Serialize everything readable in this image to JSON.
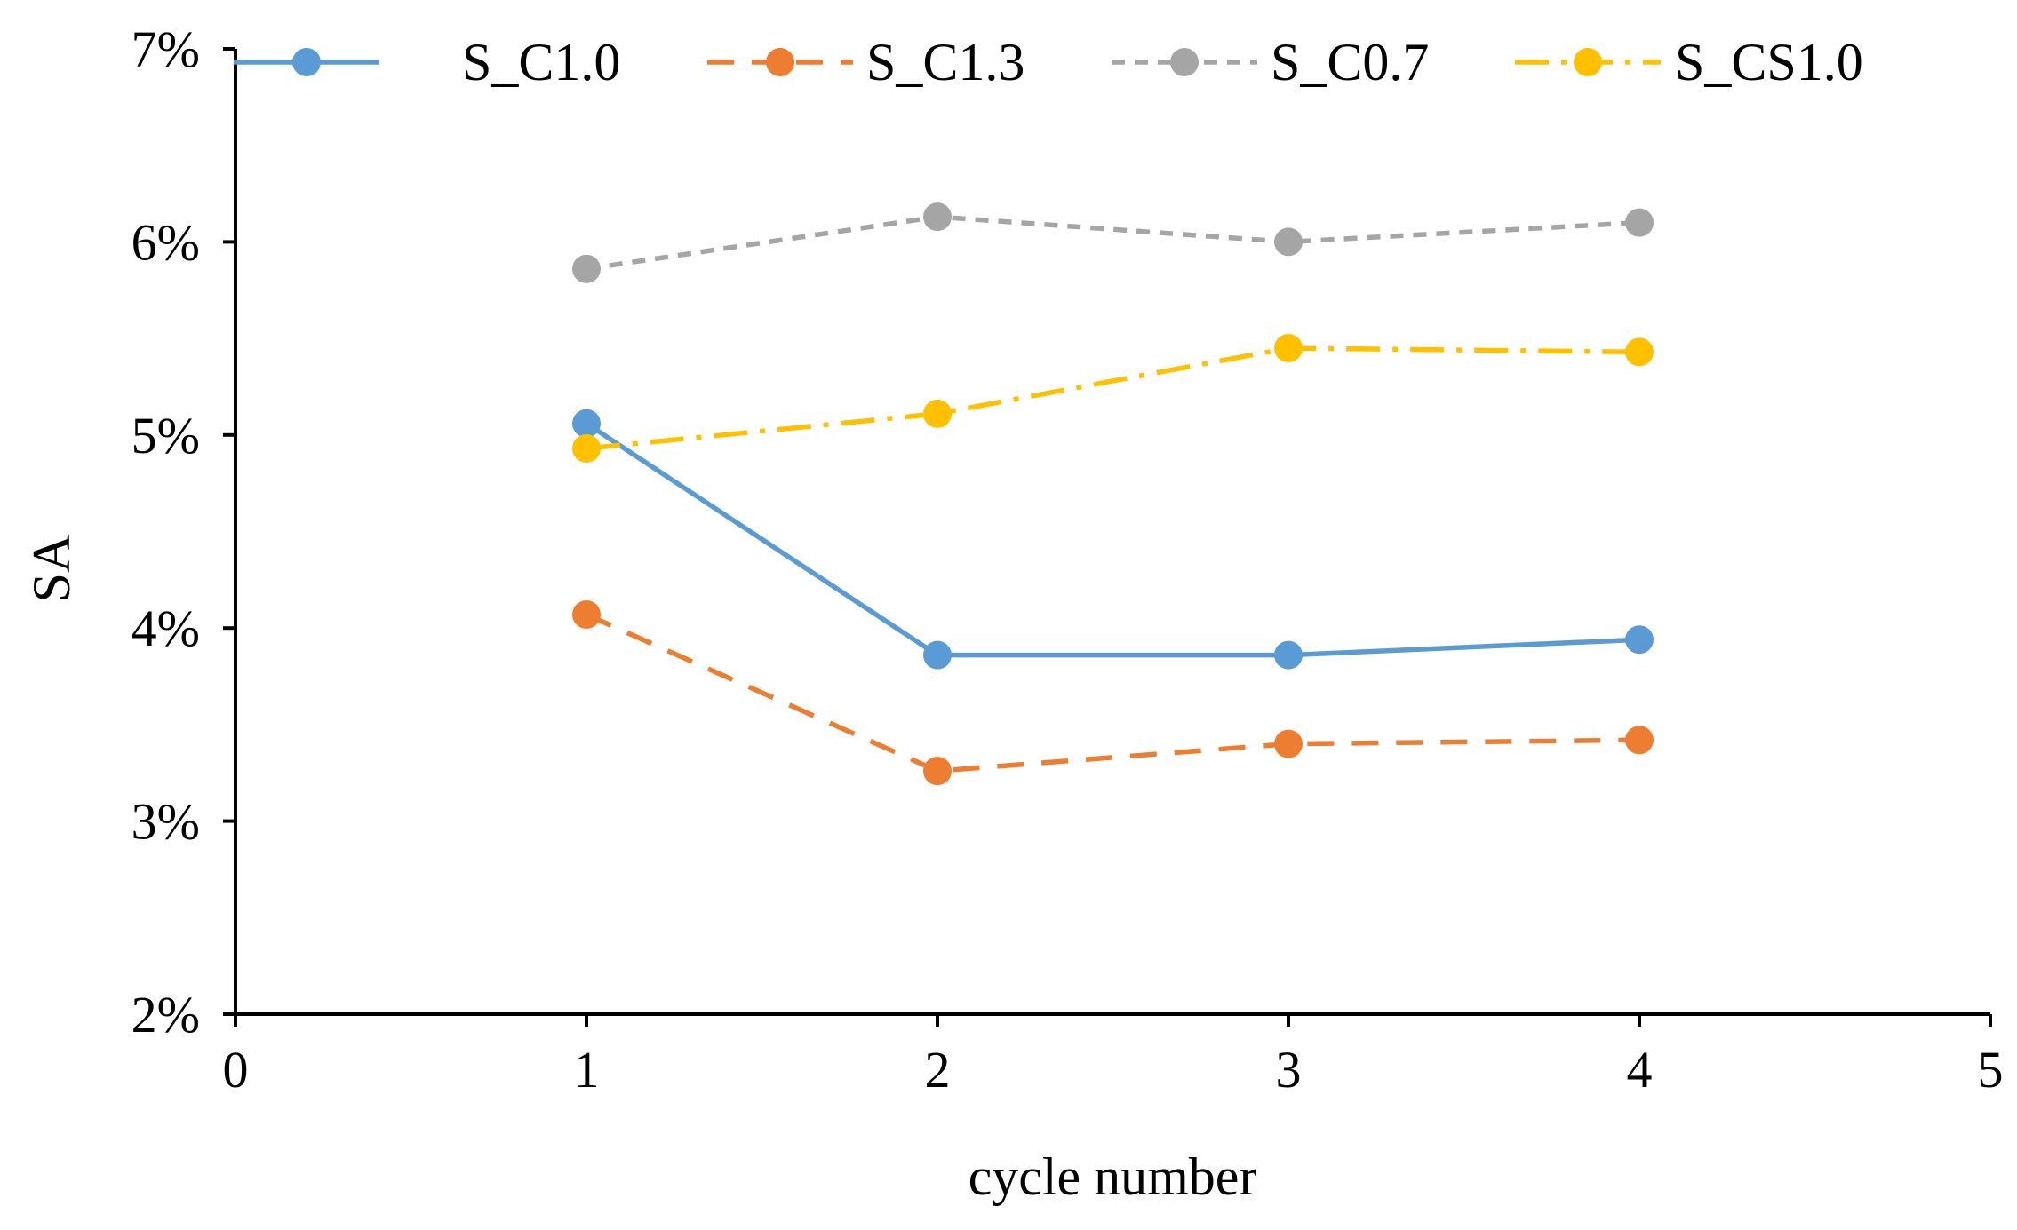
{
  "chart_data": {
    "type": "line",
    "title": "",
    "xlabel": "cycle number",
    "ylabel": "SA",
    "xlim": [
      0,
      5
    ],
    "ylim": [
      0.02,
      0.07
    ],
    "x_ticks": [
      {
        "value": 0,
        "label": "0"
      },
      {
        "value": 1,
        "label": "1"
      },
      {
        "value": 2,
        "label": "2"
      },
      {
        "value": 3,
        "label": "3"
      },
      {
        "value": 4,
        "label": "4"
      },
      {
        "value": 5,
        "label": "5"
      }
    ],
    "y_ticks": [
      {
        "value": 0.02,
        "label": "2%"
      },
      {
        "value": 0.03,
        "label": "3%"
      },
      {
        "value": 0.04,
        "label": "4%"
      },
      {
        "value": 0.05,
        "label": "5%"
      },
      {
        "value": 0.06,
        "label": "6%"
      },
      {
        "value": 0.07,
        "label": "7%"
      }
    ],
    "grid": false,
    "legend_position": "top",
    "x": [
      1,
      2,
      3,
      4
    ],
    "series": [
      {
        "name": "S_C1.0",
        "color": "#5B9BD5",
        "line_style": "solid",
        "values": [
          0.0506,
          0.0386,
          0.0386,
          0.0394
        ]
      },
      {
        "name": "S_C1.3",
        "color": "#ED7D31",
        "line_style": "dash",
        "values": [
          0.0407,
          0.0326,
          0.034,
          0.0342
        ]
      },
      {
        "name": "S_C0.7",
        "color": "#A5A5A5",
        "line_style": "short-dash",
        "values": [
          0.0586,
          0.0613,
          0.06,
          0.061
        ]
      },
      {
        "name": "S_CS1.0",
        "color": "#FFC000",
        "line_style": "dash-dot",
        "values": [
          0.0493,
          0.0511,
          0.0545,
          0.0543
        ]
      }
    ]
  }
}
